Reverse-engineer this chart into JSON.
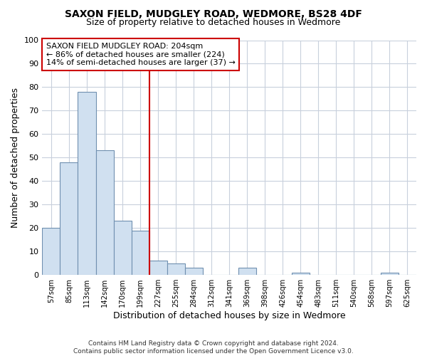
{
  "title": "SAXON FIELD, MUDGLEY ROAD, WEDMORE, BS28 4DF",
  "subtitle": "Size of property relative to detached houses in Wedmore",
  "xlabel": "Distribution of detached houses by size in Wedmore",
  "ylabel": "Number of detached properties",
  "bar_color": "#d0e0f0",
  "bar_edge_color": "#7090b0",
  "categories": [
    "57sqm",
    "85sqm",
    "113sqm",
    "142sqm",
    "170sqm",
    "199sqm",
    "227sqm",
    "255sqm",
    "284sqm",
    "312sqm",
    "341sqm",
    "369sqm",
    "398sqm",
    "426sqm",
    "454sqm",
    "483sqm",
    "511sqm",
    "540sqm",
    "568sqm",
    "597sqm",
    "625sqm"
  ],
  "values": [
    20,
    48,
    78,
    53,
    23,
    19,
    6,
    5,
    3,
    0,
    0,
    3,
    0,
    0,
    1,
    0,
    0,
    0,
    0,
    1,
    0
  ],
  "ylim": [
    0,
    100
  ],
  "yticks": [
    0,
    10,
    20,
    30,
    40,
    50,
    60,
    70,
    80,
    90,
    100
  ],
  "vline_color": "#cc0000",
  "annotation_title": "SAXON FIELD MUDGLEY ROAD: 204sqm",
  "annotation_line1": "← 86% of detached houses are smaller (224)",
  "annotation_line2": "14% of semi-detached houses are larger (37) →",
  "annotation_box_color": "#ffffff",
  "annotation_box_edge": "#cc0000",
  "footer1": "Contains HM Land Registry data © Crown copyright and database right 2024.",
  "footer2": "Contains public sector information licensed under the Open Government Licence v3.0.",
  "background_color": "#ffffff",
  "grid_color": "#c8d0dc"
}
